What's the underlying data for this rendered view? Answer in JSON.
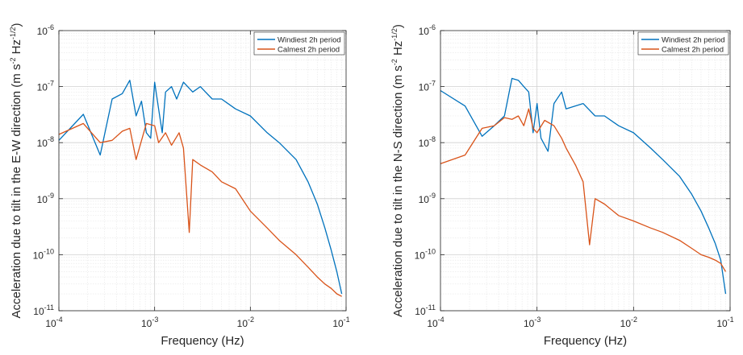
{
  "chart_data": [
    {
      "type": "line",
      "xlabel": "Frequency (Hz)",
      "ylabel": "Acceleration due to tilt in the E-W direction (m s-2 Hz-1/2)",
      "ylabel_parts": {
        "main": "Acceleration due to tilt in the E-W direction (m s",
        "exp1": "-2",
        "mid": " Hz",
        "exp2": "-1/2",
        "end": ")"
      },
      "xscale": "log",
      "yscale": "log",
      "xlim": [
        0.0001,
        0.1
      ],
      "ylim": [
        1e-11,
        1e-06
      ],
      "x_ticks": [
        {
          "base": "10",
          "exp": "-4"
        },
        {
          "base": "10",
          "exp": "-3"
        },
        {
          "base": "10",
          "exp": "-2"
        },
        {
          "base": "10",
          "exp": "-1"
        }
      ],
      "y_ticks": [
        {
          "base": "10",
          "exp": "-11"
        },
        {
          "base": "10",
          "exp": "-10"
        },
        {
          "base": "10",
          "exp": "-9"
        },
        {
          "base": "10",
          "exp": "-8"
        },
        {
          "base": "10",
          "exp": "-7"
        },
        {
          "base": "10",
          "exp": "-6"
        }
      ],
      "grid": true,
      "legend_position": "top-right",
      "series": [
        {
          "name": "Windiest 2h period",
          "color": "#0072BD",
          "points": [
            [
              0.0001,
              1.1e-08
            ],
            [
              0.00018,
              3.2e-08
            ],
            [
              0.00027,
              6e-09
            ],
            [
              0.00036,
              6e-08
            ],
            [
              0.00046,
              7.5e-08
            ],
            [
              0.00055,
              1.3e-07
            ],
            [
              0.00064,
              3e-08
            ],
            [
              0.00073,
              5.5e-08
            ],
            [
              0.00082,
              1.5e-08
            ],
            [
              0.00091,
              1.2e-08
            ],
            [
              0.001,
              1.2e-07
            ],
            [
              0.0011,
              4e-08
            ],
            [
              0.0012,
              1.5e-08
            ],
            [
              0.0013,
              8e-08
            ],
            [
              0.0015,
              1e-07
            ],
            [
              0.0017,
              6e-08
            ],
            [
              0.002,
              1.2e-07
            ],
            [
              0.0025,
              8e-08
            ],
            [
              0.003,
              1e-07
            ],
            [
              0.004,
              6e-08
            ],
            [
              0.005,
              6e-08
            ],
            [
              0.007,
              4e-08
            ],
            [
              0.01,
              3e-08
            ],
            [
              0.015,
              1.5e-08
            ],
            [
              0.02,
              1e-08
            ],
            [
              0.03,
              5e-09
            ],
            [
              0.04,
              2e-09
            ],
            [
              0.05,
              8e-10
            ],
            [
              0.06,
              3e-10
            ],
            [
              0.07,
              1.2e-10
            ],
            [
              0.08,
              5e-11
            ],
            [
              0.09,
              2e-11
            ]
          ]
        },
        {
          "name": "Calmest 2h period",
          "color": "#D95319",
          "points": [
            [
              0.0001,
              1.4e-08
            ],
            [
              0.00018,
              2.2e-08
            ],
            [
              0.00027,
              1e-08
            ],
            [
              0.00036,
              1.1e-08
            ],
            [
              0.00046,
              1.6e-08
            ],
            [
              0.00055,
              1.8e-08
            ],
            [
              0.00064,
              5e-09
            ],
            [
              0.00082,
              2.2e-08
            ],
            [
              0.001,
              2e-08
            ],
            [
              0.0011,
              1e-08
            ],
            [
              0.0013,
              1.5e-08
            ],
            [
              0.0015,
              9e-09
            ],
            [
              0.0018,
              1.5e-08
            ],
            [
              0.002,
              8e-09
            ],
            [
              0.0023,
              2.5e-10
            ],
            [
              0.0025,
              5e-09
            ],
            [
              0.003,
              4e-09
            ],
            [
              0.004,
              3e-09
            ],
            [
              0.005,
              2e-09
            ],
            [
              0.007,
              1.5e-09
            ],
            [
              0.01,
              6e-10
            ],
            [
              0.015,
              3e-10
            ],
            [
              0.02,
              1.8e-10
            ],
            [
              0.03,
              1e-10
            ],
            [
              0.04,
              6e-11
            ],
            [
              0.05,
              4e-11
            ],
            [
              0.06,
              3e-11
            ],
            [
              0.07,
              2.5e-11
            ],
            [
              0.08,
              2e-11
            ],
            [
              0.09,
              1.8e-11
            ]
          ]
        }
      ]
    },
    {
      "type": "line",
      "xlabel": "Frequency (Hz)",
      "ylabel": "Acceleration due to tilt in the N-S direction (m s-2 Hz-1/2)",
      "ylabel_parts": {
        "main": "Acceleration due to tilt in the N-S direction (m s",
        "exp1": "-2",
        "mid": " Hz",
        "exp2": "-1/2",
        "end": ")"
      },
      "xscale": "log",
      "yscale": "log",
      "xlim": [
        0.0001,
        0.1
      ],
      "ylim": [
        1e-11,
        1e-06
      ],
      "x_ticks": [
        {
          "base": "10",
          "exp": "-4"
        },
        {
          "base": "10",
          "exp": "-3"
        },
        {
          "base": "10",
          "exp": "-2"
        },
        {
          "base": "10",
          "exp": "-1"
        }
      ],
      "y_ticks": [
        {
          "base": "10",
          "exp": "-11"
        },
        {
          "base": "10",
          "exp": "-10"
        },
        {
          "base": "10",
          "exp": "-9"
        },
        {
          "base": "10",
          "exp": "-8"
        },
        {
          "base": "10",
          "exp": "-7"
        },
        {
          "base": "10",
          "exp": "-6"
        }
      ],
      "grid": true,
      "legend_position": "top-right",
      "series": [
        {
          "name": "Windiest 2h period",
          "color": "#0072BD",
          "points": [
            [
              0.0001,
              8.5e-08
            ],
            [
              0.00018,
              4.5e-08
            ],
            [
              0.00027,
              1.3e-08
            ],
            [
              0.00036,
              2e-08
            ],
            [
              0.00046,
              3e-08
            ],
            [
              0.00055,
              1.4e-07
            ],
            [
              0.00064,
              1.3e-07
            ],
            [
              0.00073,
              1e-07
            ],
            [
              0.00082,
              8e-08
            ],
            [
              0.00091,
              1.5e-08
            ],
            [
              0.001,
              5e-08
            ],
            [
              0.0011,
              1.2e-08
            ],
            [
              0.0013,
              7e-09
            ],
            [
              0.0015,
              5e-08
            ],
            [
              0.0018,
              8e-08
            ],
            [
              0.002,
              4e-08
            ],
            [
              0.003,
              5e-08
            ],
            [
              0.004,
              3e-08
            ],
            [
              0.005,
              3e-08
            ],
            [
              0.007,
              2e-08
            ],
            [
              0.01,
              1.5e-08
            ],
            [
              0.015,
              8e-09
            ],
            [
              0.02,
              5e-09
            ],
            [
              0.03,
              2.5e-09
            ],
            [
              0.04,
              1.2e-09
            ],
            [
              0.05,
              6e-10
            ],
            [
              0.06,
              3e-10
            ],
            [
              0.07,
              1.6e-10
            ],
            [
              0.08,
              8e-11
            ],
            [
              0.09,
              2e-11
            ]
          ]
        },
        {
          "name": "Calmest 2h period",
          "color": "#D95319",
          "points": [
            [
              0.0001,
              4.2e-09
            ],
            [
              0.00018,
              6e-09
            ],
            [
              0.00027,
              1.8e-08
            ],
            [
              0.00036,
              2e-08
            ],
            [
              0.00046,
              2.8e-08
            ],
            [
              0.00055,
              2.6e-08
            ],
            [
              0.00064,
              3e-08
            ],
            [
              0.00073,
              2e-08
            ],
            [
              0.00082,
              4e-08
            ],
            [
              0.00091,
              1.8e-08
            ],
            [
              0.001,
              1.5e-08
            ],
            [
              0.0012,
              2.5e-08
            ],
            [
              0.0015,
              2e-08
            ],
            [
              0.0018,
              1.2e-08
            ],
            [
              0.002,
              8e-09
            ],
            [
              0.0025,
              4e-09
            ],
            [
              0.003,
              2e-09
            ],
            [
              0.0035,
              1.5e-10
            ],
            [
              0.004,
              1e-09
            ],
            [
              0.005,
              8e-10
            ],
            [
              0.007,
              5e-10
            ],
            [
              0.01,
              4e-10
            ],
            [
              0.015,
              3e-10
            ],
            [
              0.02,
              2.5e-10
            ],
            [
              0.03,
              1.8e-10
            ],
            [
              0.04,
              1.3e-10
            ],
            [
              0.05,
              1e-10
            ],
            [
              0.06,
              9e-11
            ],
            [
              0.07,
              8e-11
            ],
            [
              0.08,
              7e-11
            ],
            [
              0.09,
              5e-11
            ]
          ]
        }
      ]
    }
  ]
}
